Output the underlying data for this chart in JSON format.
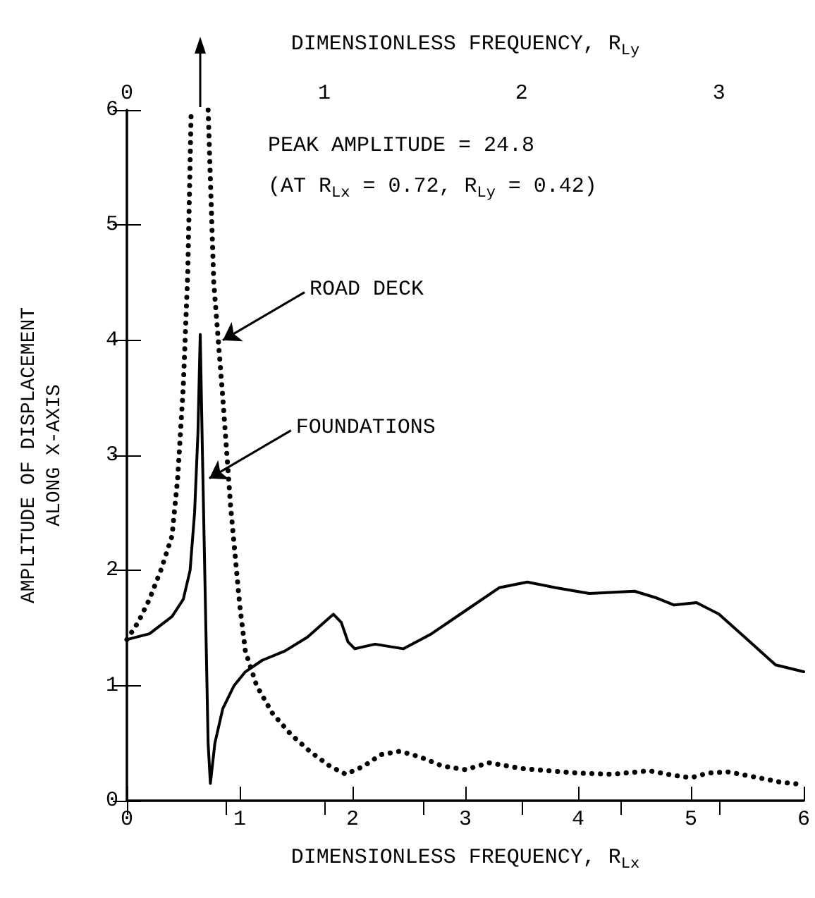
{
  "chart_data": {
    "type": "line",
    "xlabel": "DIMENSIONLESS FREQUENCY, R$_{Lx}$",
    "x2label": "DIMENSIONLESS FREQUENCY, R$_{Ly}$",
    "ylabel": "AMPLITUDE OF DISPLACEMENT\nALONG X-AXIS",
    "xlim": [
      0,
      6
    ],
    "xticks": [
      0,
      1,
      2,
      3,
      4,
      5,
      6
    ],
    "x2lim": [
      0,
      3.43
    ],
    "x2ticks": [
      0,
      {
        "value": 0.5,
        "label": null
      },
      1,
      {
        "value": 1.5,
        "label": null
      },
      2,
      {
        "value": 2.5,
        "label": null
      },
      3
    ],
    "ylim": [
      0,
      6
    ],
    "yticks": [
      0,
      1,
      2,
      3,
      4,
      5,
      6
    ],
    "grid": false,
    "marker": "none",
    "series": [
      {
        "color": "#000000",
        "line_style": "solid",
        "x": [
          0,
          0.2,
          0.4,
          0.5,
          0.56,
          0.6,
          0.63,
          0.65,
          0.67,
          0.7,
          0.72,
          0.74,
          0.78,
          0.85,
          0.95,
          1.05,
          1.2,
          1.4,
          1.6,
          1.75,
          1.83,
          1.9,
          1.96,
          2.02,
          2.2,
          2.45,
          2.7,
          3.0,
          3.3,
          3.55,
          3.8,
          4.1,
          4.5,
          4.7,
          4.85,
          5.05,
          5.25,
          5.5,
          5.75,
          6
        ],
        "values": [
          1.4,
          1.45,
          1.6,
          1.75,
          2.0,
          2.5,
          3.2,
          4.05,
          3.0,
          1.5,
          0.5,
          0.15,
          0.5,
          0.8,
          1.0,
          1.12,
          1.22,
          1.3,
          1.42,
          1.55,
          1.62,
          1.55,
          1.38,
          1.32,
          1.36,
          1.32,
          1.45,
          1.65,
          1.85,
          1.9,
          1.85,
          1.8,
          1.82,
          1.76,
          1.7,
          1.72,
          1.62,
          1.4,
          1.18,
          1.12
        ]
      },
      {
        "color": "#000000",
        "line_style": "dotted",
        "x": [
          0,
          0.1,
          0.2,
          0.3,
          0.4,
          0.45,
          0.5,
          0.54,
          0.57,
          0.65,
          0.72,
          0.77,
          0.85,
          0.92,
          1.0,
          1.05,
          1.15,
          1.29,
          1.45,
          1.62,
          1.8,
          1.94,
          2.1,
          2.25,
          2.42,
          2.6,
          2.8,
          3.0,
          3.21,
          3.5,
          4.0,
          4.3,
          4.63,
          4.85,
          5.0,
          5.15,
          5.33,
          5.6,
          5.8,
          6.0
        ],
        "values": [
          1.4,
          1.55,
          1.75,
          2.0,
          2.3,
          2.8,
          3.6,
          4.6,
          6,
          null,
          6,
          4.5,
          3.5,
          2.55,
          1.7,
          1.3,
          1.0,
          0.76,
          0.58,
          0.43,
          0.3,
          0.23,
          0.3,
          0.4,
          0.43,
          0.38,
          0.3,
          0.27,
          0.33,
          0.28,
          0.24,
          0.23,
          0.26,
          0.22,
          0.2,
          0.24,
          0.25,
          0.2,
          0.16,
          0.14
        ]
      }
    ],
    "annotations": [
      "PEAK AMPLITUDE = 24.8",
      "(AT R$_{Lx}$ = 0.72, R$_{Ly}$ = 0.42)",
      {
        "text": "ROAD DECK",
        "x": 0.85,
        "y": 4.0
      },
      {
        "text": "FOUNDATIONS",
        "x": 0.73,
        "y": 2.8
      }
    ]
  }
}
